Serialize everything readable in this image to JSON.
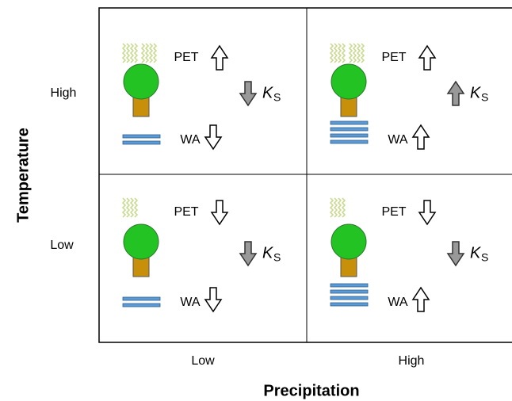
{
  "y_axis": {
    "title": "Temperature",
    "labels": [
      "High",
      "Low"
    ]
  },
  "x_axis": {
    "title": "Precipitation",
    "labels": [
      "Low",
      "High"
    ]
  },
  "cells": [
    {
      "pet": "PET",
      "wa": "WA",
      "ks": "K",
      "ks_sub": "S"
    },
    {
      "pet": "PET",
      "wa": "WA",
      "ks": "K",
      "ks_sub": "S"
    },
    {
      "pet": "PET",
      "wa": "WA",
      "ks": "K",
      "ks_sub": "S"
    },
    {
      "pet": "PET",
      "wa": "WA",
      "ks": "K",
      "ks_sub": "S"
    }
  ]
}
